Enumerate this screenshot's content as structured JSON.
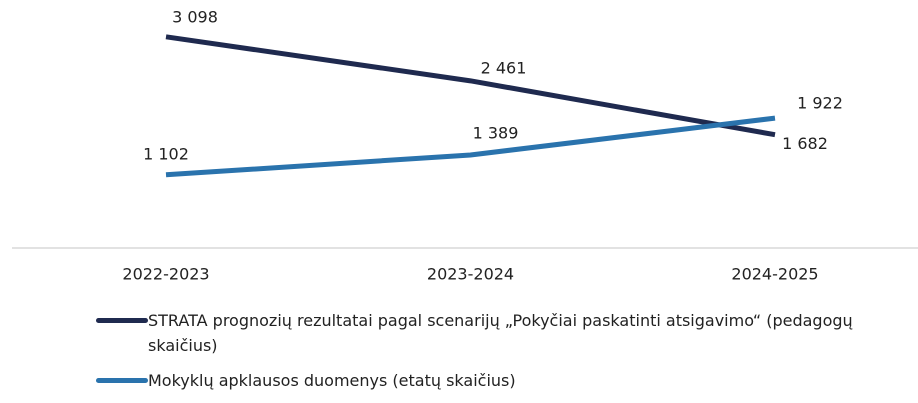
{
  "chart_data": {
    "type": "line",
    "categories": [
      "2022-2023",
      "2023-2024",
      "2024-2025"
    ],
    "series": [
      {
        "name": "STRATA prognozių rezultatai pagal scenarijų „Pokyčiai paskatinti atsigavimo“ (pedagogų skaičius)",
        "color": "#1f2a4f",
        "values": [
          3098,
          2461,
          1682
        ],
        "value_labels": [
          "3 098",
          "2 461",
          "1 682"
        ]
      },
      {
        "name": "Mokyklų apklausos duomenys (etatų skaičius)",
        "color": "#2a73ad",
        "values": [
          1102,
          1389,
          1922
        ],
        "value_labels": [
          "1 102",
          "1 389",
          "1 922"
        ]
      }
    ],
    "ylim": [
      0,
      3500
    ],
    "legend": "bottom"
  }
}
